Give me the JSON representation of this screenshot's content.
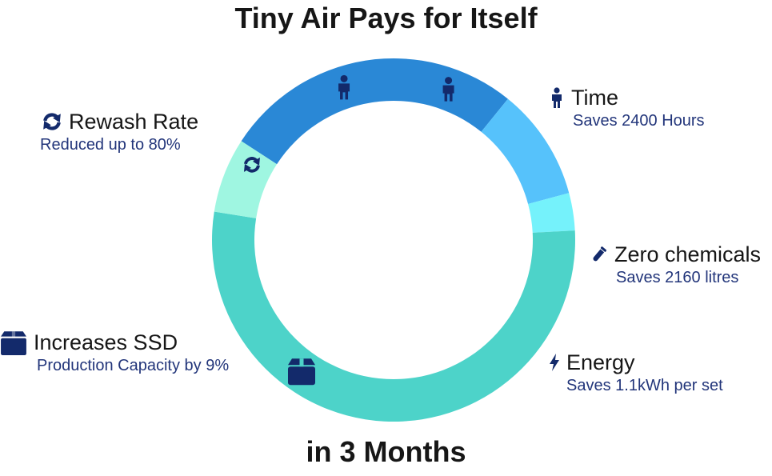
{
  "header": {
    "title": "Tiny Air Pays for Itself"
  },
  "footer": {
    "subtitle": "in 3 Months"
  },
  "chart_data": {
    "type": "pie",
    "style": "donut",
    "slices": [
      {
        "key": "time",
        "share": 0.2667,
        "color": "#2a88d6",
        "icon": "person-icon"
      },
      {
        "key": "chemicals",
        "share": 0.1,
        "color": "#56c2fb",
        "icon": "test-tube-icon"
      },
      {
        "key": "energy",
        "share": 0.0333,
        "color": "#75f2fb",
        "icon": "bolt-icon"
      },
      {
        "key": "ssd",
        "share": 0.5333,
        "color": "#4dd3c9",
        "icon": "box-icon"
      },
      {
        "key": "rewash",
        "share": 0.0667,
        "color": "#9ff6e1",
        "icon": "refresh-icon"
      }
    ]
  },
  "callouts": {
    "rewash": {
      "title": "Rewash Rate",
      "detail": "Reduced up to 80%",
      "icon": "refresh-icon"
    },
    "time": {
      "title": "Time",
      "detail": "Saves 2400 Hours",
      "icon": "person-icon"
    },
    "chemicals": {
      "title": "Zero chemicals",
      "detail": "Saves 2160 litres",
      "icon": "test-tube-icon"
    },
    "ssd": {
      "title": "Increases SSD",
      "detail": "Production Capacity by 9%",
      "icon": "box-icon"
    },
    "energy": {
      "title": "Energy",
      "detail": "Saves 1.1kWh per set",
      "icon": "bolt-icon"
    }
  },
  "colors": {
    "icon_dark": "#132a6b",
    "text_dark": "#161616",
    "text_blue": "#22357a"
  }
}
